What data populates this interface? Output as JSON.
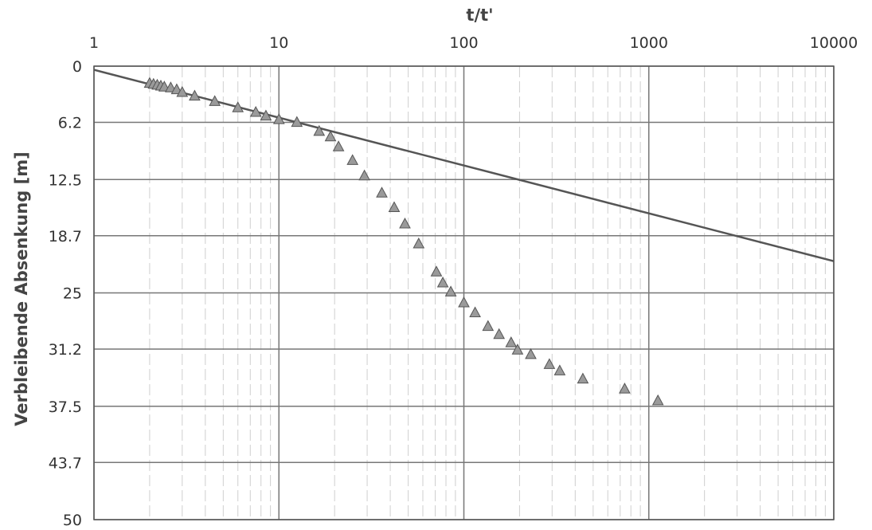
{
  "chart_data": {
    "type": "scatter",
    "title": "",
    "xlabel": "t/t'",
    "ylabel": "Verbleibende Absenkung [m]",
    "x_scale": "log",
    "x_axis_position": "top",
    "y_inverted": true,
    "xlim": [
      1,
      10000
    ],
    "ylim": [
      0,
      50
    ],
    "x_ticks": [
      "1",
      "10",
      "100",
      "1000",
      "10000"
    ],
    "y_ticks": [
      "0",
      "6.2",
      "12.5",
      "18.7",
      "25",
      "31.2",
      "37.5",
      "43.7",
      "50"
    ],
    "grid": true,
    "series": [
      {
        "marker": "triangle",
        "color": "#9a9a9a",
        "x": [
          2.0,
          2.1,
          2.2,
          2.3,
          2.4,
          2.6,
          2.8,
          3.0,
          3.5,
          4.5,
          6.0,
          7.5,
          8.5,
          10.0,
          12.5,
          16.5,
          19.0,
          21.0,
          25.0,
          29.0,
          36.0,
          42.0,
          48.0,
          57.0,
          71.0,
          77.0,
          85.0,
          100.0,
          115.0,
          135.0,
          155.0,
          180.0,
          195.0,
          230.0,
          290.0,
          330.0,
          440.0,
          740.0,
          1120.0
        ],
        "y": [
          1.9,
          2.0,
          2.1,
          2.2,
          2.3,
          2.4,
          2.6,
          2.9,
          3.3,
          3.9,
          4.6,
          5.1,
          5.5,
          5.9,
          6.2,
          7.2,
          7.8,
          8.9,
          10.4,
          12.1,
          14.0,
          15.6,
          17.4,
          19.6,
          22.7,
          23.9,
          24.9,
          26.1,
          27.2,
          28.7,
          29.6,
          30.5,
          31.3,
          31.8,
          32.9,
          33.6,
          34.5,
          35.6,
          36.9
        ]
      },
      {
        "type": "line",
        "color": "#555555",
        "x": [
          1,
          10000
        ],
        "y": [
          0.4,
          21.5
        ]
      }
    ]
  }
}
